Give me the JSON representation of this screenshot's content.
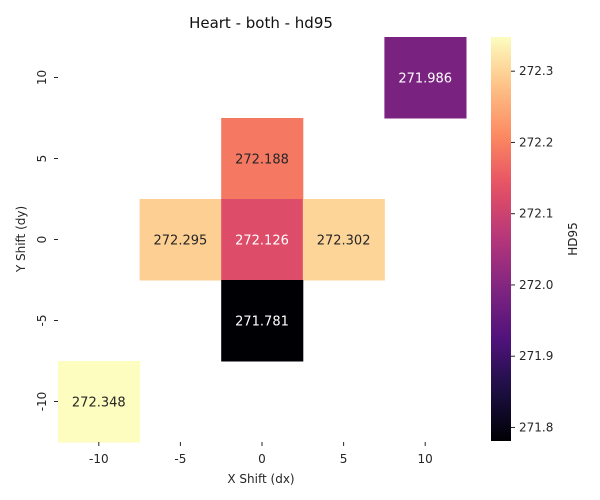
{
  "chart_data": {
    "type": "heatmap",
    "title": "Heart - both - hd95",
    "xlabel": "X Shift (dx)",
    "ylabel": "Y Shift (dy)",
    "x": [
      -10,
      -5,
      0,
      5,
      10
    ],
    "y": [
      10,
      5,
      0,
      -5,
      -10
    ],
    "x_tick_labels": [
      "-10",
      "-5",
      "0",
      "5",
      "10"
    ],
    "y_tick_labels": [
      "10",
      "5",
      "0",
      "-5",
      "-10"
    ],
    "cells": [
      {
        "dx": 10,
        "dy": 10,
        "value": 271.986,
        "label": "271.986"
      },
      {
        "dx": 0,
        "dy": 5,
        "value": 272.188,
        "label": "272.188"
      },
      {
        "dx": -5,
        "dy": 0,
        "value": 272.295,
        "label": "272.295"
      },
      {
        "dx": 0,
        "dy": 0,
        "value": 272.126,
        "label": "272.126"
      },
      {
        "dx": 5,
        "dy": 0,
        "value": 272.302,
        "label": "272.302"
      },
      {
        "dx": 0,
        "dy": -5,
        "value": 271.781,
        "label": "271.781"
      },
      {
        "dx": -10,
        "dy": -10,
        "value": 272.348,
        "label": "272.348"
      }
    ],
    "colorbar": {
      "label": "HD95",
      "colormap": "magma",
      "vmin": 271.781,
      "vmax": 272.348,
      "ticks": [
        271.8,
        271.9,
        272.0,
        272.1,
        272.2,
        272.3
      ],
      "tick_labels": [
        "271.8",
        "271.9",
        "272.0",
        "272.1",
        "272.2",
        "272.3"
      ]
    },
    "grid": false
  }
}
